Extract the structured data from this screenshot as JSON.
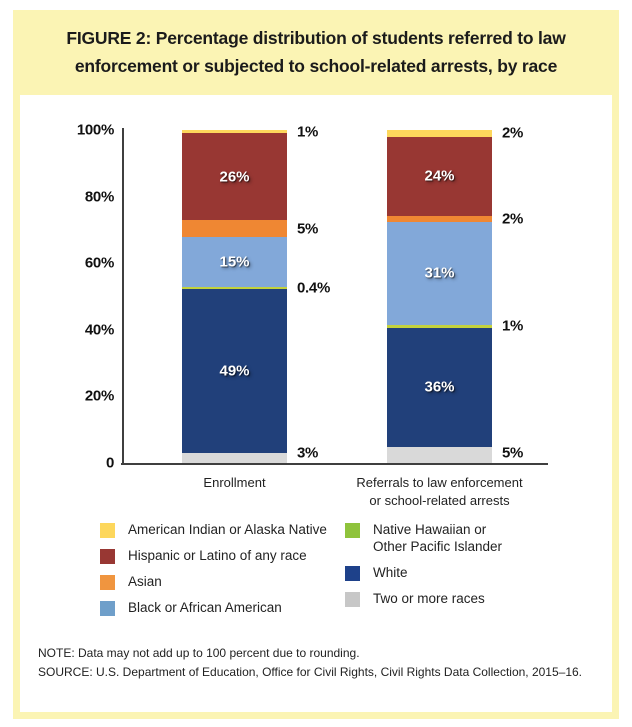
{
  "panel": {
    "title": "FIGURE 2: Percentage distribution of students referred to law enforcement or subjected to school-related arrests, by race",
    "band_color": "#fbf4b4"
  },
  "chart_data": {
    "type": "bar",
    "subtype": "stacked-percentage",
    "categories": [
      "Enrollment",
      "Referrals to law enforcement\nor school-related arrests"
    ],
    "series": [
      {
        "name": "Two or more races",
        "color": "#d9d9d9",
        "values": [
          3,
          5
        ],
        "labels": [
          "3%",
          "5%"
        ],
        "label_placement": "right"
      },
      {
        "name": "White",
        "color": "#21407a",
        "values": [
          49,
          36
        ],
        "labels": [
          "49%",
          "36%"
        ],
        "label_placement": "inside"
      },
      {
        "name": "Native Hawaiian or Other Pacific Islander",
        "color": "#c3d23c",
        "values": [
          0.4,
          1
        ],
        "labels": [
          "0.4%",
          "1%"
        ],
        "label_placement": "right"
      },
      {
        "name": "Black or African American",
        "color": "#82a8d9",
        "values": [
          15,
          31
        ],
        "labels": [
          "15%",
          "31%"
        ],
        "label_placement": "inside"
      },
      {
        "name": "Asian",
        "color": "#ef8733",
        "values": [
          5,
          2
        ],
        "labels": [
          "5%",
          "2%"
        ],
        "label_placement": "right"
      },
      {
        "name": "Hispanic or Latino of any race",
        "color": "#983733",
        "values": [
          26,
          24
        ],
        "labels": [
          "26%",
          "24%"
        ],
        "label_placement": "inside"
      },
      {
        "name": "American Indian or Alaska Native",
        "color": "#fdd75c",
        "values": [
          1,
          2
        ],
        "labels": [
          "1%",
          "2%"
        ],
        "label_placement": "right"
      }
    ],
    "y_ticks": [
      {
        "value": 100,
        "label": "100%"
      },
      {
        "value": 80,
        "label": "80%"
      },
      {
        "value": 60,
        "label": "60%"
      },
      {
        "value": 40,
        "label": "40%"
      },
      {
        "value": 20,
        "label": "20%"
      },
      {
        "value": 0,
        "label": "0"
      }
    ],
    "ylim": [
      0,
      100
    ],
    "grid": false,
    "legend_position": "bottom"
  },
  "legend": {
    "columns": [
      [
        {
          "label": "American Indian or Alaska Native",
          "color": "#fdd75c"
        },
        {
          "label": "Hispanic or Latino of any race",
          "color": "#983733"
        },
        {
          "label": "Asian",
          "color": "#f0953f"
        },
        {
          "label": "Black or African American",
          "color": "#6f9fca"
        }
      ],
      [
        {
          "label": "Native Hawaiian or\nOther Pacific Islander",
          "color": "#8fc33c"
        },
        {
          "label": "White",
          "color": "#1e418a"
        },
        {
          "label": "Two or more races",
          "color": "#c7c7c7"
        }
      ]
    ]
  },
  "footer": {
    "note": "NOTE: Data may not add up to 100 percent due to rounding.",
    "source": "SOURCE: U.S. Department of Education, Office for Civil Rights, Civil Rights Data Collection, 2015–16."
  }
}
